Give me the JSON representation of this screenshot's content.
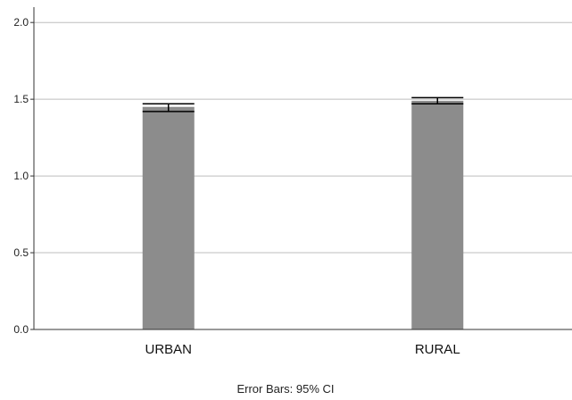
{
  "chart_data": {
    "type": "bar",
    "categories": [
      "URBAN",
      "RURAL"
    ],
    "values": [
      1.45,
      1.49
    ],
    "error_bars": [
      {
        "low": 1.42,
        "high": 1.47
      },
      {
        "low": 1.47,
        "high": 1.51
      }
    ],
    "ylim": [
      0,
      2.1
    ],
    "yticks": [
      "0.0",
      "0.5",
      "1.0",
      "1.5",
      "2.0"
    ],
    "grid": true,
    "footnote": "Error Bars: 95% CI",
    "colors": {
      "bar": "#8c8c8c",
      "grid": "#bdbdbd",
      "axis": "#333333",
      "error": "#000000"
    }
  }
}
